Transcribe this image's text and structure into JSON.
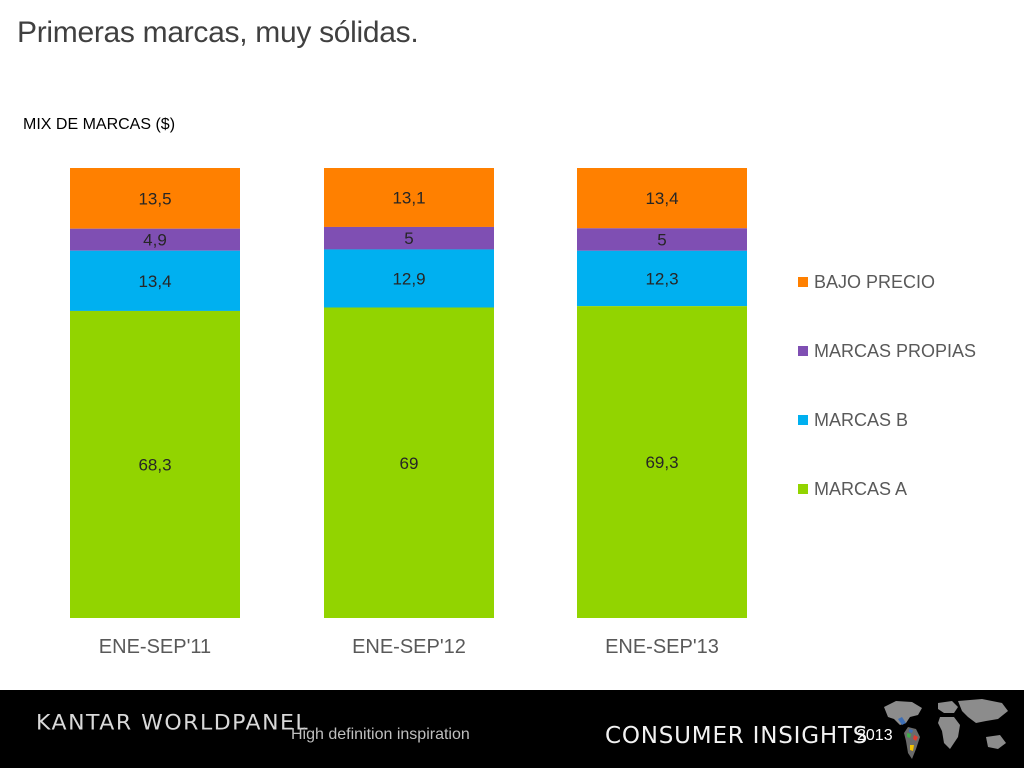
{
  "page": {
    "title": "Primeras marcas, muy sólidas."
  },
  "chart_data": {
    "type": "bar",
    "stacked": true,
    "subtitle": "MIX DE MARCAS ($)",
    "categories": [
      "ENE-SEP'11",
      "ENE-SEP'12",
      "ENE-SEP'13"
    ],
    "series": [
      {
        "name": "MARCAS A",
        "color": "#92d400",
        "values": [
          68.3,
          69,
          69.3
        ],
        "labels": [
          "68,3",
          "69",
          "69,3"
        ]
      },
      {
        "name": "MARCAS B",
        "color": "#00b0f0",
        "values": [
          13.4,
          12.9,
          12.3
        ],
        "labels": [
          "13,4",
          "12,9",
          "12,3"
        ]
      },
      {
        "name": "MARCAS PROPIAS",
        "color": "#7f4fb3",
        "values": [
          4.9,
          5,
          5
        ],
        "labels": [
          "4,9",
          "5",
          "5"
        ]
      },
      {
        "name": "BAJO PRECIO",
        "color": "#ff8000",
        "values": [
          13.5,
          13.1,
          13.4
        ],
        "labels": [
          "13,5",
          "13,1",
          "13,4"
        ]
      }
    ],
    "legend_order": [
      "BAJO PRECIO",
      "MARCAS PROPIAS",
      "MARCAS B",
      "MARCAS A"
    ],
    "legend_position": "right",
    "ylim": [
      0,
      100
    ],
    "grid": false
  },
  "footer": {
    "brand": "KANTAR WORLDPANEL",
    "tagline": "High definition inspiration",
    "section": "CONSUMER INSIGHTS",
    "year": "2013"
  },
  "icons": {
    "world_map": "world-map-icon"
  }
}
